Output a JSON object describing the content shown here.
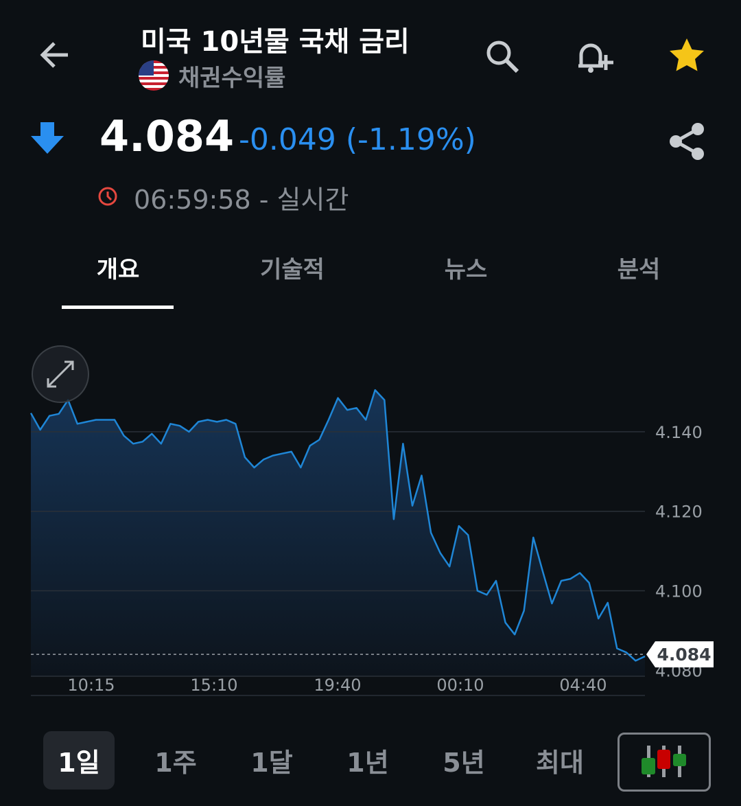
{
  "header": {
    "title": "미국 10년물 국채 금리",
    "subtitle": "채권수익률",
    "flag": "us-flag",
    "icons": [
      "back-arrow-icon",
      "search-icon",
      "bell-plus-icon",
      "star-icon"
    ],
    "star_color": "#f5c518"
  },
  "quote": {
    "price": "4.084",
    "change": "-0.049 (-1.19%)",
    "direction": "down",
    "change_color": "#2a8ff0",
    "time": "06:59:58 - 실시간"
  },
  "tabs": [
    {
      "label": "개요",
      "active": true
    },
    {
      "label": "기술적"
    },
    {
      "label": "뉴스"
    },
    {
      "label": "분석"
    }
  ],
  "ranges": [
    {
      "label": "1일",
      "selected": true
    },
    {
      "label": "1주"
    },
    {
      "label": "1달"
    },
    {
      "label": "1년"
    },
    {
      "label": "5년"
    },
    {
      "label": "최대"
    }
  ],
  "chart_data": {
    "type": "area",
    "ylim": [
      4.0785,
      4.1519
    ],
    "yticks": [
      "4.140",
      "4.120",
      "4.100",
      "4.080"
    ],
    "xticks": [
      "10:15",
      "15:10",
      "19:40",
      "00:10",
      "04:40"
    ],
    "current_label": "4.084",
    "current_value": 4.084,
    "line_color": "#1f86d6",
    "values": [
      4.1447,
      4.1405,
      4.144,
      4.1445,
      4.148,
      4.142,
      4.1425,
      4.143,
      4.143,
      4.143,
      4.139,
      4.137,
      4.1375,
      4.1395,
      4.137,
      4.142,
      4.1415,
      4.14,
      4.1425,
      4.143,
      4.1425,
      4.143,
      4.142,
      4.1336,
      4.131,
      4.133,
      4.134,
      4.1345,
      4.135,
      4.131,
      4.1365,
      4.138,
      4.143,
      4.1485,
      4.1455,
      4.146,
      4.143,
      4.1505,
      4.148,
      4.118,
      4.137,
      4.1214,
      4.129,
      4.1146,
      4.1095,
      4.1061,
      4.1163,
      4.114,
      4.1,
      4.099,
      4.1025,
      4.092,
      4.089,
      4.095,
      4.1134,
      4.105,
      4.0968,
      4.1025,
      4.103,
      4.1045,
      4.102,
      4.093,
      4.097,
      4.0855,
      4.0845,
      4.0824,
      4.0835
    ]
  }
}
